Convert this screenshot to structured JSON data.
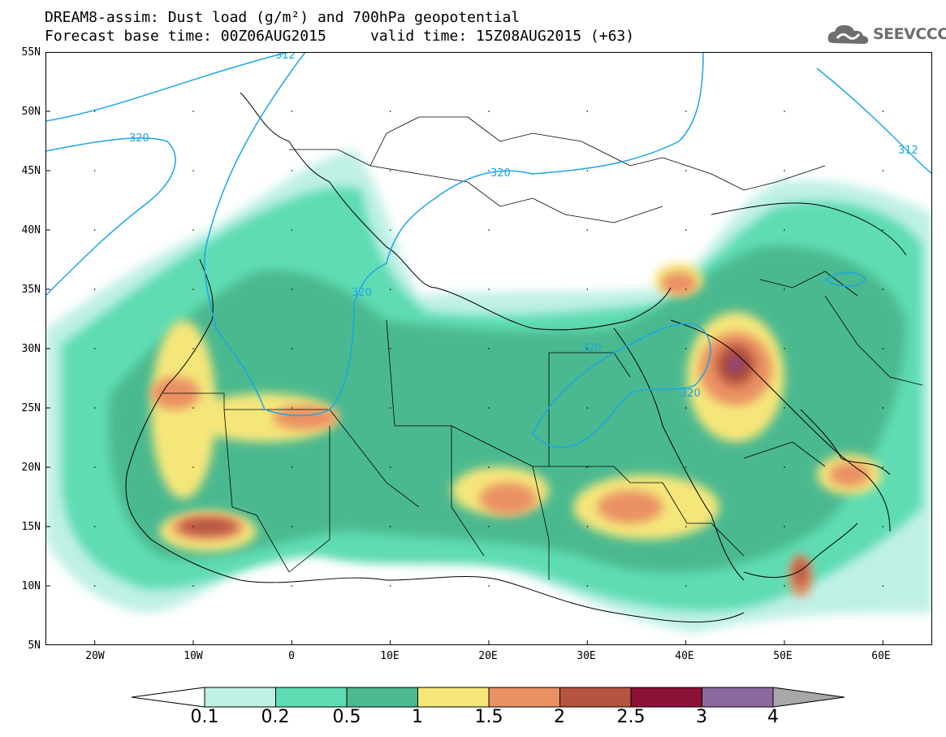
{
  "title": {
    "line1": "DREAM8-assim: Dust load (g/m²) and 700hPa geopotential",
    "line2": "Forecast base time: 00Z06AUG2015     valid time: 15Z08AUG2015 (+63)"
  },
  "logo": {
    "text": "SEEVCCC",
    "icon": "cloud-icon"
  },
  "map": {
    "lat_labels": [
      "55N",
      "50N",
      "45N",
      "40N",
      "35N",
      "30N",
      "25N",
      "20N",
      "15N",
      "10N",
      "5N"
    ],
    "lon_labels": [
      "20W",
      "10W",
      "0",
      "10E",
      "20E",
      "30E",
      "40E",
      "50E",
      "60E"
    ],
    "lat_range": [
      5,
      55
    ],
    "lon_range": [
      -25,
      65
    ],
    "contour_labels": [
      "312",
      "320",
      "320",
      "320",
      "320",
      "320",
      "312"
    ]
  },
  "colorbar": {
    "labels": [
      "0.1",
      "0.2",
      "0.5",
      "1",
      "1.5",
      "2",
      "2.5",
      "3",
      "4"
    ],
    "colors": [
      "#bff0e6",
      "#5fdcb3",
      "#4cb98f",
      "#f5e67a",
      "#ea9163",
      "#b5543f",
      "#8b1236",
      "#8c6aa0"
    ],
    "extend_low_color": "#ffffff",
    "extend_high_color": "#a8a8a8"
  },
  "colors": {
    "contour": "#1ba6e6",
    "background": "#ffffff"
  }
}
